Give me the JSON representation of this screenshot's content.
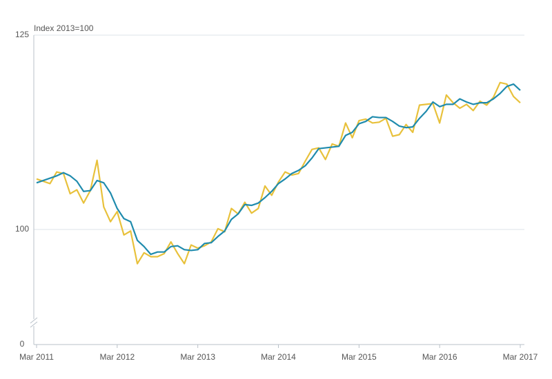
{
  "chart_data": {
    "type": "line",
    "y_label": "Index 2013=100",
    "categories": [
      "Mar 2011",
      null,
      null,
      null,
      null,
      null,
      null,
      null,
      null,
      null,
      null,
      null,
      "Mar 2012",
      null,
      null,
      null,
      null,
      null,
      null,
      null,
      null,
      null,
      null,
      null,
      "Mar 2013",
      null,
      null,
      null,
      null,
      null,
      null,
      null,
      null,
      null,
      null,
      null,
      "Mar 2014",
      null,
      null,
      null,
      null,
      null,
      null,
      null,
      null,
      null,
      null,
      null,
      "Mar 2015",
      null,
      null,
      null,
      null,
      null,
      null,
      null,
      null,
      null,
      null,
      null,
      "Mar 2016",
      null,
      null,
      null,
      null,
      null,
      null,
      null,
      null,
      null,
      null,
      null,
      "Mar 2017"
    ],
    "series": [
      {
        "color": "#e8c13b",
        "values": [
          106.5,
          106.2,
          105.9,
          107.4,
          107.2,
          104.6,
          105.1,
          103.4,
          105.0,
          108.9,
          102.9,
          101.0,
          102.3,
          99.3,
          99.8,
          95.6,
          97.0,
          96.5,
          96.5,
          96.9,
          98.4,
          96.9,
          95.6,
          98.0,
          97.6,
          97.9,
          98.4,
          100.1,
          99.7,
          102.7,
          102.0,
          103.5,
          102.1,
          102.7,
          105.6,
          104.4,
          106.1,
          107.4,
          107.0,
          107.2,
          108.8,
          110.3,
          110.5,
          109.0,
          111.0,
          110.7,
          113.7,
          111.8,
          114.0,
          114.2,
          113.7,
          113.8,
          114.3,
          112.0,
          112.2,
          113.5,
          112.5,
          116.0,
          116.1,
          116.2,
          113.7,
          117.3,
          116.3,
          115.6,
          116.1,
          115.3,
          116.5,
          116.0,
          117.0,
          118.9,
          118.7,
          117.1,
          116.3
        ]
      },
      {
        "color": "#1f8bad",
        "values": [
          106.0,
          106.3,
          106.6,
          106.9,
          107.3,
          106.9,
          106.2,
          104.9,
          105.0,
          106.3,
          106.0,
          104.7,
          102.7,
          101.4,
          101.0,
          98.6,
          97.8,
          96.8,
          97.1,
          97.1,
          97.8,
          97.9,
          97.4,
          97.3,
          97.4,
          98.2,
          98.3,
          99.1,
          99.8,
          101.3,
          102.0,
          103.2,
          103.1,
          103.4,
          104.1,
          104.9,
          105.9,
          106.5,
          107.2,
          107.6,
          108.2,
          109.2,
          110.4,
          110.5,
          110.6,
          110.7,
          112.1,
          112.5,
          113.6,
          113.9,
          114.5,
          114.4,
          114.4,
          113.9,
          113.3,
          113.1,
          113.2,
          114.3,
          115.2,
          116.4,
          115.8,
          116.1,
          116.1,
          116.8,
          116.4,
          116.1,
          116.3,
          116.3,
          116.8,
          117.5,
          118.4,
          118.7,
          117.9
        ]
      }
    ],
    "ylim": [
      0,
      125
    ],
    "yticks": [
      0,
      100,
      125
    ],
    "axis_break": true,
    "grid": true
  }
}
